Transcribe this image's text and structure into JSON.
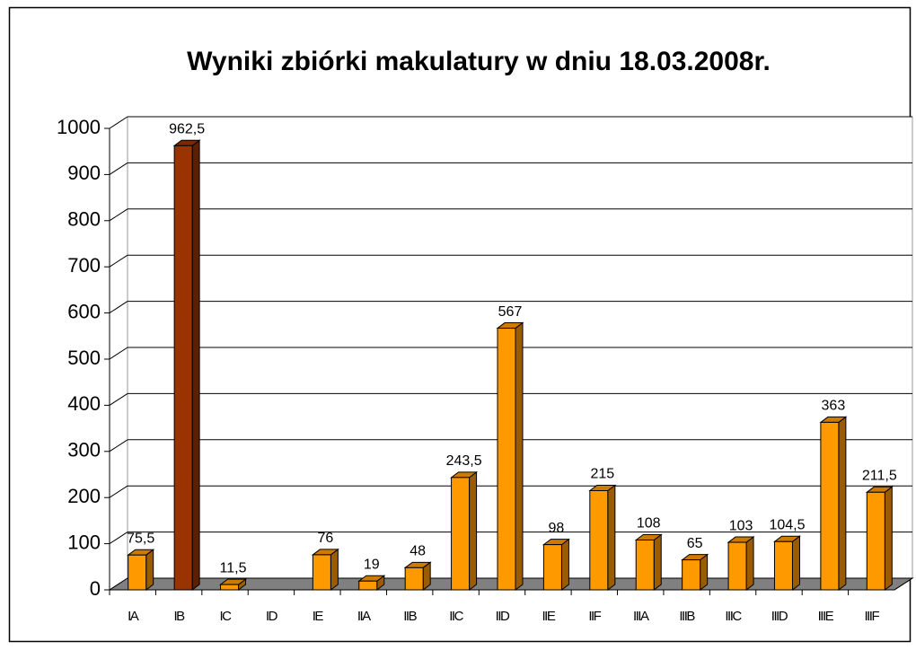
{
  "chart_data": {
    "type": "bar",
    "title": "Wyniki zbiórki makulatury w dniu 18.03.2008r.",
    "categories": [
      "IA",
      "IB",
      "IC",
      "ID",
      "IE",
      "IIA",
      "IIB",
      "IIC",
      "IID",
      "IIE",
      "IIF",
      "IIIA",
      "IIIB",
      "IIIC",
      "IIID",
      "IIIE",
      "IIIF"
    ],
    "values": [
      75.5,
      962.5,
      11.5,
      null,
      76,
      19,
      48,
      243.5,
      567,
      98,
      215,
      108,
      65,
      103,
      104.5,
      363,
      211.5
    ],
    "value_labels": [
      "75,5",
      "962,5",
      "11,5",
      null,
      "76",
      "19",
      "48",
      "243,5",
      "567",
      "98",
      "215",
      "108",
      "65",
      "103",
      "104,5",
      "363",
      "211,5"
    ],
    "colors": [
      "#ff9900",
      "#993300",
      "#ff9900",
      "#ff9900",
      "#ff9900",
      "#ff9900",
      "#ff9900",
      "#ff9900",
      "#ff9900",
      "#ff9900",
      "#ff9900",
      "#ff9900",
      "#ff9900",
      "#ff9900",
      "#ff9900",
      "#ff9900",
      "#ff9900"
    ],
    "ylim": [
      0,
      1000
    ],
    "yticks": [
      0,
      100,
      200,
      300,
      400,
      500,
      600,
      700,
      800,
      900,
      1000
    ],
    "grid": true
  }
}
